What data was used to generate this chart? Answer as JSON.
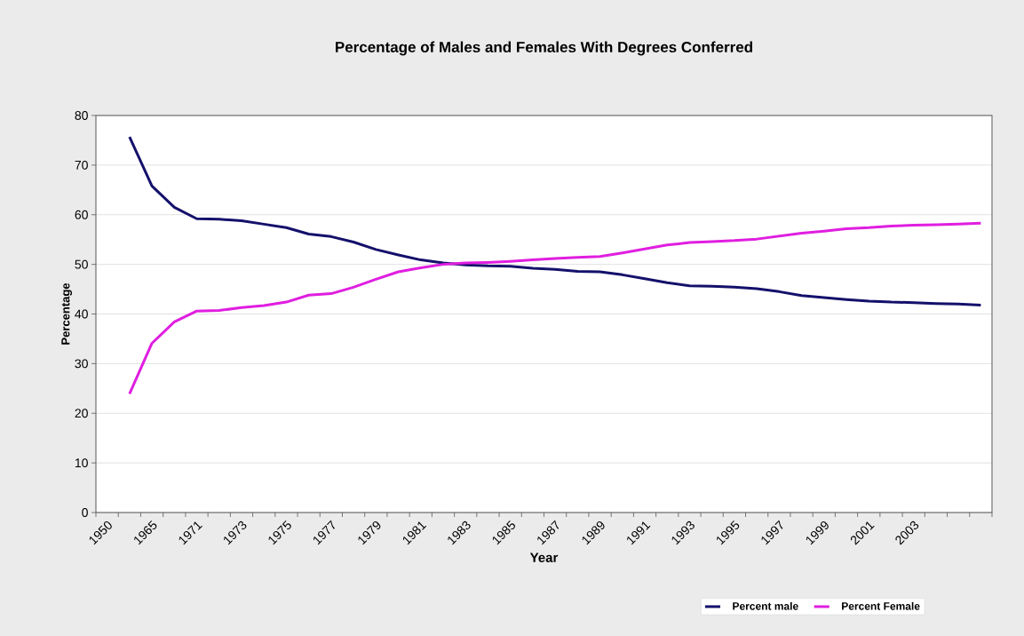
{
  "chart_data": {
    "type": "line",
    "title": "Percentage of Males and Females With Degrees Conferred",
    "xlabel": "Year",
    "ylabel": "Percentage",
    "categories": [
      "1950",
      null,
      "1965",
      null,
      "1971",
      null,
      "1973",
      null,
      "1975",
      null,
      "1977",
      null,
      "1979",
      null,
      "1981",
      null,
      "1983",
      null,
      "1985",
      null,
      "1987",
      null,
      "1989",
      null,
      "1991",
      null,
      "1993",
      null,
      "1995",
      null,
      "1997",
      null,
      "1999",
      null,
      "2001",
      null,
      "2003",
      null,
      null,
      null
    ],
    "series": [
      {
        "name": "Percent male",
        "color": "#14106b",
        "values": [
          null,
          75.7,
          65.8,
          61.5,
          59.2,
          59.1,
          58.8,
          58.1,
          57.4,
          56.1,
          55.6,
          54.5,
          53.0,
          51.9,
          50.9,
          50.3,
          49.9,
          49.7,
          49.6,
          49.2,
          49.0,
          48.6,
          48.5,
          47.9,
          47.1,
          46.3,
          45.7,
          45.6,
          45.4,
          45.1,
          44.5,
          43.7,
          43.3,
          42.9,
          42.6,
          42.4,
          42.3,
          42.1,
          42.0,
          41.8
        ]
      },
      {
        "name": "Percent  Female",
        "color": "#e01ee0",
        "values": [
          null,
          23.9,
          34.1,
          38.4,
          40.6,
          40.7,
          41.3,
          41.7,
          42.4,
          43.8,
          44.1,
          45.4,
          47.0,
          48.5,
          49.3,
          50.0,
          50.3,
          50.4,
          50.6,
          50.9,
          51.2,
          51.4,
          51.6,
          52.3,
          53.1,
          53.9,
          54.4,
          54.6,
          54.8,
          55.1,
          55.7,
          56.3,
          56.7,
          57.2,
          57.4,
          57.7,
          57.9,
          58.0,
          58.1,
          58.3
        ]
      }
    ],
    "ylim": [
      0,
      80
    ],
    "yticks": [
      0,
      10,
      20,
      30,
      40,
      50,
      60,
      70,
      80
    ],
    "grid": "y",
    "legend": "bottom",
    "marker": "none",
    "line_style": "solid"
  }
}
